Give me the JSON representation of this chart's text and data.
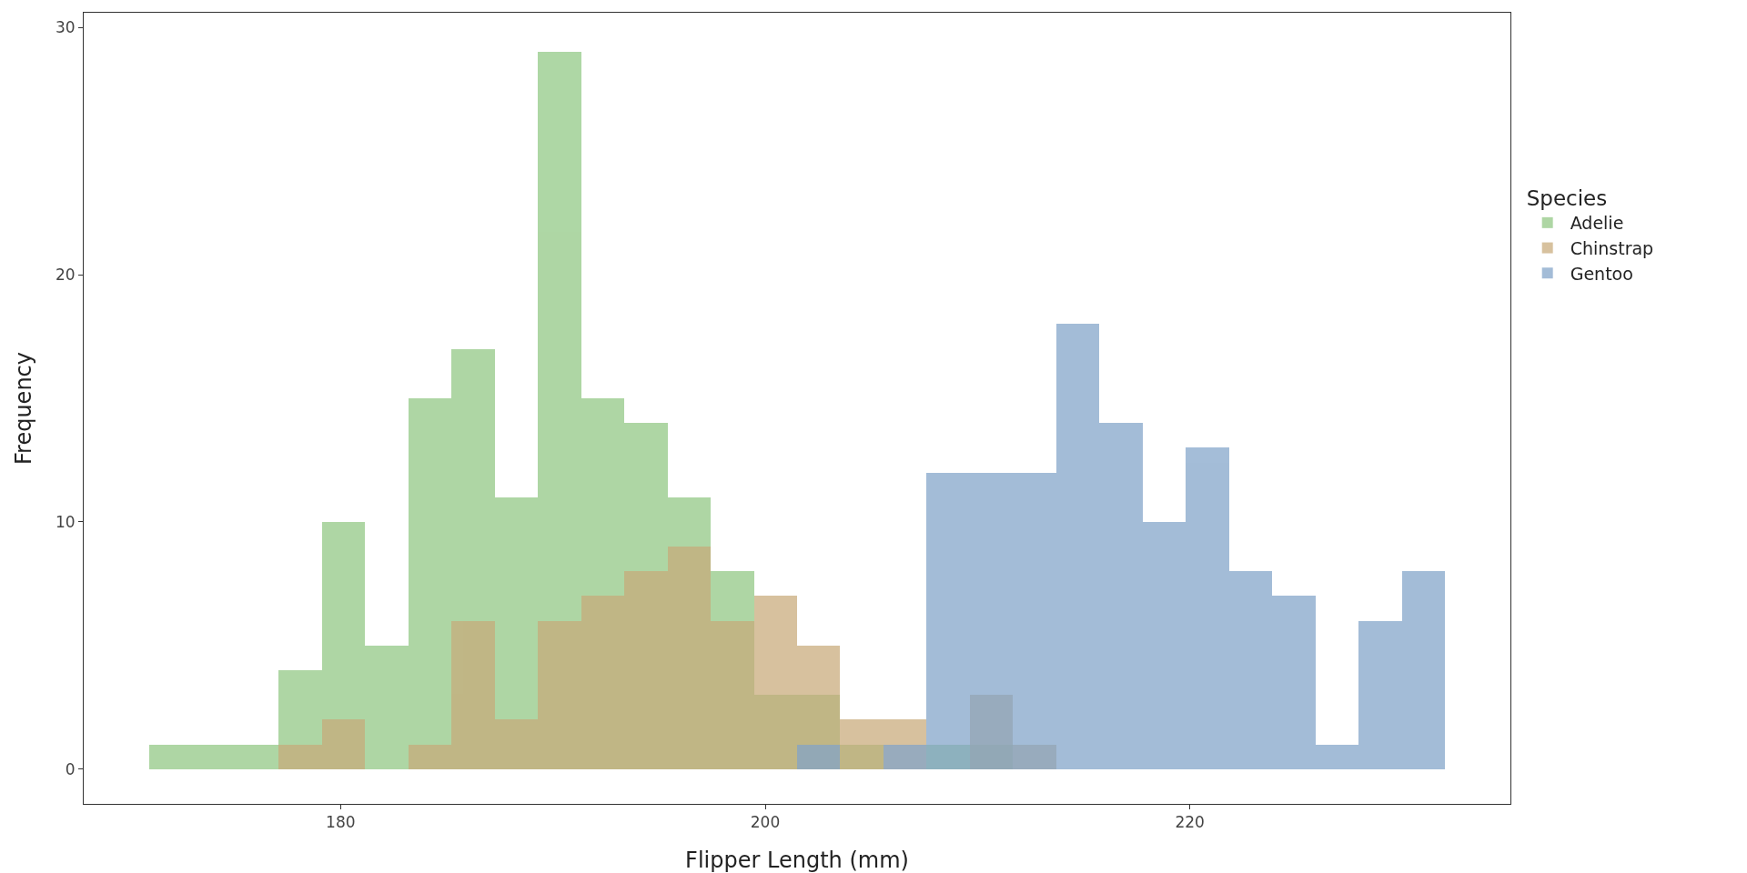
{
  "chart_data": {
    "type": "histogram",
    "xlabel": "Flipper Length (mm)",
    "ylabel": "Frequency",
    "legend_title": "Species",
    "legend": "right",
    "grid": false,
    "bins": [
      170.98,
      173.02,
      175.05,
      177.09,
      179.12,
      181.16,
      183.19,
      185.22,
      187.26,
      189.29,
      191.33,
      193.36,
      195.4,
      197.43,
      199.47,
      201.5,
      203.53,
      205.57,
      207.6,
      209.64,
      211.67,
      213.71,
      215.74,
      217.78,
      219.81,
      221.84,
      223.88,
      225.91,
      227.95,
      229.98,
      232.02
    ],
    "series": [
      {
        "name": "Adelie",
        "color": "#8fc782",
        "values": [
          1,
          1,
          1,
          4,
          10,
          5,
          15,
          17,
          11,
          29,
          15,
          14,
          11,
          8,
          3,
          3,
          1,
          0,
          1,
          1,
          0,
          0,
          0,
          0,
          0,
          0,
          0,
          0,
          0,
          0
        ]
      },
      {
        "name": "Chinstrap",
        "color": "#c8aa7a",
        "values": [
          0,
          0,
          0,
          1,
          2,
          0,
          1,
          6,
          2,
          6,
          7,
          8,
          9,
          6,
          7,
          5,
          2,
          2,
          0,
          3,
          1,
          0,
          0,
          0,
          0,
          0,
          0,
          0,
          0,
          0
        ]
      },
      {
        "name": "Gentoo",
        "color": "#81a3c9",
        "values": [
          0,
          0,
          0,
          0,
          0,
          0,
          0,
          0,
          0,
          0,
          0,
          0,
          0,
          0,
          0,
          1,
          0,
          1,
          12,
          12,
          12,
          18,
          14,
          10,
          13,
          8,
          7,
          1,
          6,
          8
        ]
      }
    ],
    "xlim": [
      167.9,
      235.1
    ],
    "xticks": [
      180,
      200,
      220
    ],
    "ylim": [
      -1.41,
      30.6
    ],
    "yticks": [
      0,
      10,
      20,
      30
    ]
  }
}
